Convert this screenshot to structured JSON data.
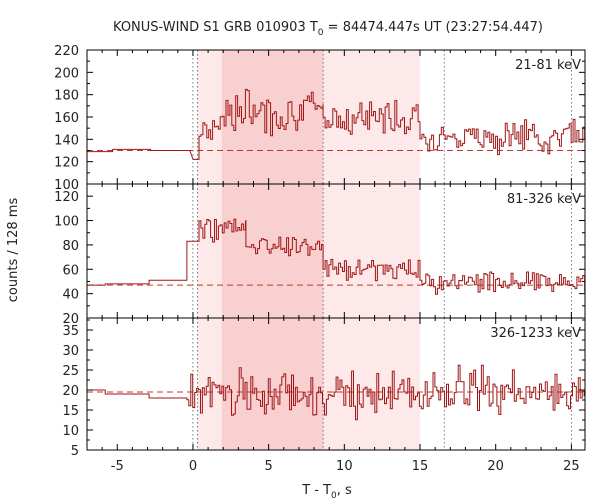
{
  "title": {
    "prefix": "KONUS-WIND S1 GRB 010903 T",
    "sub": "0",
    "suffix": " = 84474.447s UT (23:27:54.447)"
  },
  "xlabel": {
    "prefix": "T - T",
    "sub": "0",
    "suffix": ", s"
  },
  "ylabel": "counts / 128 ms",
  "colors": {
    "curve": "#a01515",
    "background_line": "#c0392b",
    "shade_light": "#fde9e9",
    "shade_dark": "#f9d0d0",
    "axis": "#000000"
  },
  "chart_data": {
    "type": "line",
    "x_range": [
      -7,
      25.9
    ],
    "x_ticks": [
      -5,
      0,
      5,
      10,
      15,
      20,
      25
    ],
    "vertical_markers_dotted": [
      0,
      0.3,
      8.6,
      16.6,
      25
    ],
    "shaded_intervals": [
      {
        "from": 0.3,
        "to": 15.0,
        "shade": "light"
      },
      {
        "from": 1.9,
        "to": 8.6,
        "shade": "dark"
      }
    ],
    "panels": [
      {
        "band": "21-81 keV",
        "ylim": [
          100,
          220
        ],
        "yticks": [
          100,
          120,
          140,
          160,
          180,
          200,
          220
        ],
        "background_level": 130,
        "preburst": [
          [
            -7,
            129
          ],
          [
            -5.3,
            129
          ],
          [
            -5.3,
            131
          ],
          [
            -2.8,
            131
          ],
          [
            -2.8,
            130
          ],
          [
            -0.2,
            130
          ]
        ],
        "segments": [
          {
            "from": 0,
            "to": 0.4,
            "val": 122
          },
          {
            "from": 0.4,
            "to": 1.8,
            "base": 150,
            "amp": 14
          },
          {
            "from": 1.8,
            "to": 8.6,
            "base": 165,
            "amp": 20
          },
          {
            "from": 8.6,
            "to": 15,
            "base": 160,
            "amp": 18
          },
          {
            "from": 15,
            "to": 25.9,
            "base": 143,
            "amp": 15
          }
        ],
        "seed": 7
      },
      {
        "band": "81-326 keV",
        "ylim": [
          20,
          130
        ],
        "yticks": [
          20,
          40,
          60,
          80,
          100,
          120
        ],
        "background_level": 47,
        "preburst": [
          [
            -7,
            47
          ],
          [
            -5.8,
            47
          ],
          [
            -5.8,
            48
          ],
          [
            -2.9,
            48
          ],
          [
            -2.9,
            51
          ],
          [
            -0.4,
            51
          ]
        ],
        "segments": [
          {
            "from": -0.4,
            "to": 0.4,
            "val": 83
          },
          {
            "from": 0.4,
            "to": 3.5,
            "base": 94,
            "amp": 11
          },
          {
            "from": 3.5,
            "to": 8.6,
            "base": 80,
            "amp": 10
          },
          {
            "from": 8.6,
            "to": 15,
            "base": 60,
            "amp": 11
          },
          {
            "from": 15,
            "to": 25.9,
            "base": 50,
            "amp": 10
          }
        ],
        "seed": 19
      },
      {
        "band": "326-1233 keV",
        "ylim": [
          5,
          38
        ],
        "yticks": [
          5,
          10,
          15,
          20,
          25,
          30,
          35
        ],
        "background_level": 19.5,
        "preburst": [
          [
            -7,
            20
          ],
          [
            -5.8,
            20
          ],
          [
            -5.8,
            19
          ],
          [
            -2.9,
            19
          ],
          [
            -2.9,
            18
          ],
          [
            -0.4,
            18
          ]
        ],
        "segments": [
          {
            "from": -0.4,
            "to": 25.9,
            "base": 19,
            "amp": 6
          }
        ],
        "seed": 31
      }
    ]
  }
}
